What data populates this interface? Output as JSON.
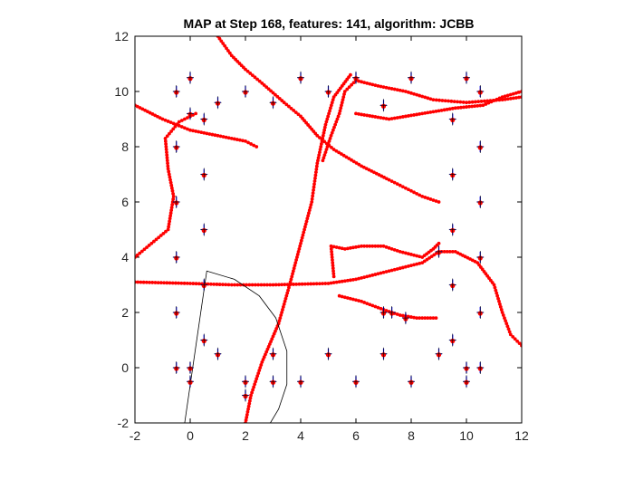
{
  "chart_data": {
    "type": "scatter",
    "title": "MAP at Step 168, features: 141, algorithm: JCBB",
    "xlim": [
      -2,
      12
    ],
    "ylim": [
      -2,
      12
    ],
    "x_ticks": [
      -2,
      0,
      2,
      4,
      6,
      8,
      10,
      12
    ],
    "y_ticks": [
      -2,
      0,
      2,
      4,
      6,
      8,
      10,
      12
    ],
    "grid": false,
    "legend": "none",
    "colors": {
      "landmarks": "#0000ff",
      "estimates": "#ff0000",
      "markers": "#000000",
      "sensor_range": "#000000"
    },
    "landmarks": [
      [
        -0.5,
        10
      ],
      [
        0,
        10.5
      ],
      [
        -0.5,
        8
      ],
      [
        0,
        9.2
      ],
      [
        0.5,
        9
      ],
      [
        1,
        9.6
      ],
      [
        -0.5,
        6
      ],
      [
        0.5,
        7
      ],
      [
        0.5,
        5
      ],
      [
        -0.5,
        4
      ],
      [
        0.5,
        3
      ],
      [
        -0.5,
        2
      ],
      [
        0.5,
        1
      ],
      [
        1,
        0.5
      ],
      [
        -0.5,
        0
      ],
      [
        0,
        0
      ],
      [
        0,
        -0.5
      ],
      [
        2,
        -0.5
      ],
      [
        2,
        -1
      ],
      [
        3,
        0.5
      ],
      [
        3,
        -0.5
      ],
      [
        4,
        -0.5
      ],
      [
        5,
        0.5
      ],
      [
        6,
        -0.5
      ],
      [
        7,
        0.5
      ],
      [
        8,
        -0.5
      ],
      [
        9,
        0.5
      ],
      [
        9.5,
        1
      ],
      [
        10,
        0
      ],
      [
        10,
        -0.5
      ],
      [
        10.5,
        0
      ],
      [
        2,
        10
      ],
      [
        3,
        9.6
      ],
      [
        4,
        10.5
      ],
      [
        5,
        10
      ],
      [
        6,
        10.5
      ],
      [
        7,
        9.5
      ],
      [
        8,
        10.5
      ],
      [
        9.5,
        9
      ],
      [
        10,
        10.5
      ],
      [
        10.5,
        10
      ],
      [
        10.5,
        8
      ],
      [
        9.5,
        7
      ],
      [
        10.5,
        6
      ],
      [
        9.5,
        5
      ],
      [
        10.5,
        4
      ],
      [
        9.5,
        3
      ],
      [
        10.5,
        2
      ],
      [
        7,
        2
      ],
      [
        7.3,
        2
      ],
      [
        7.8,
        1.8
      ],
      [
        9,
        4.2
      ]
    ],
    "estimated_trajectories": [
      {
        "points": [
          [
            1,
            12
          ],
          [
            1.5,
            11.3
          ],
          [
            2,
            10.8
          ],
          [
            2.6,
            10.3
          ],
          [
            3.4,
            9.6
          ],
          [
            4,
            9.1
          ],
          [
            4.6,
            8.4
          ],
          [
            5.2,
            7.9
          ],
          [
            6.2,
            7.3
          ],
          [
            7.2,
            6.8
          ],
          [
            7.8,
            6.5
          ],
          [
            8.4,
            6.2
          ],
          [
            9,
            6
          ]
        ]
      },
      {
        "points": [
          [
            4.8,
            7.5
          ],
          [
            5.1,
            8.4
          ],
          [
            5.4,
            9.2
          ],
          [
            5.6,
            10
          ],
          [
            6,
            10.4
          ],
          [
            6.8,
            10.2
          ],
          [
            7.8,
            10
          ],
          [
            8.8,
            9.7
          ],
          [
            10,
            9.6
          ],
          [
            11.3,
            9.7
          ],
          [
            12,
            9.8
          ]
        ]
      },
      {
        "points": [
          [
            6,
            9.2
          ],
          [
            7.2,
            9
          ],
          [
            8.4,
            9.2
          ],
          [
            9.6,
            9.4
          ],
          [
            10.6,
            9.5
          ],
          [
            11.3,
            9.8
          ],
          [
            12,
            10
          ]
        ]
      },
      {
        "points": [
          [
            -2,
            9.5
          ],
          [
            -1,
            9
          ],
          [
            0,
            8.6
          ],
          [
            1,
            8.4
          ],
          [
            2,
            8.2
          ],
          [
            2.4,
            8
          ]
        ]
      },
      {
        "points": [
          [
            0.2,
            9.2
          ],
          [
            -0.4,
            8.9
          ],
          [
            -0.9,
            8.3
          ],
          [
            -0.8,
            7.2
          ],
          [
            -0.6,
            6.2
          ],
          [
            -0.8,
            5
          ],
          [
            -1.4,
            4.5
          ],
          [
            -2,
            4
          ]
        ]
      },
      {
        "points": [
          [
            2,
            -2
          ],
          [
            2.2,
            -1
          ],
          [
            2.6,
            0.2
          ],
          [
            3.2,
            1.6
          ],
          [
            3.6,
            3
          ],
          [
            4,
            4.5
          ],
          [
            4.4,
            6
          ],
          [
            4.6,
            7.4
          ],
          [
            4.9,
            8.8
          ],
          [
            5.2,
            9.8
          ],
          [
            5.8,
            10.6
          ]
        ]
      },
      {
        "points": [
          [
            -2,
            3.1
          ],
          [
            0,
            3.05
          ],
          [
            1.5,
            3
          ],
          [
            3,
            3
          ],
          [
            5,
            3.05
          ],
          [
            6,
            3.2
          ],
          [
            6.8,
            3.4
          ],
          [
            7.6,
            3.6
          ],
          [
            8.4,
            3.8
          ],
          [
            9,
            4.2
          ],
          [
            9.6,
            4.2
          ],
          [
            10.4,
            3.8
          ],
          [
            11,
            3
          ],
          [
            11.3,
            2
          ],
          [
            11.6,
            1.2
          ],
          [
            12,
            0.8
          ]
        ]
      },
      {
        "points": [
          [
            5.2,
            3.3
          ],
          [
            5.1,
            4.4
          ],
          [
            5.6,
            4.3
          ],
          [
            6.2,
            4.4
          ],
          [
            7,
            4.4
          ],
          [
            7.6,
            4.2
          ],
          [
            8.4,
            4
          ],
          [
            8.8,
            4.3
          ],
          [
            9,
            4.5
          ]
        ]
      },
      {
        "points": [
          [
            5.4,
            2.6
          ],
          [
            6.2,
            2.4
          ],
          [
            7,
            2.1
          ],
          [
            7.6,
            1.9
          ],
          [
            8.2,
            1.8
          ],
          [
            8.9,
            1.8
          ]
        ]
      }
    ],
    "sensor_range": {
      "robot": [
        0.6,
        3.5
      ],
      "arc_points": [
        [
          -0.2,
          -2
        ],
        [
          0.6,
          3.5
        ],
        [
          1.6,
          3.2
        ],
        [
          2.5,
          2.6
        ],
        [
          3.1,
          1.8
        ],
        [
          3.5,
          0.6
        ],
        [
          3.5,
          -0.6
        ],
        [
          3.2,
          -1.5
        ],
        [
          2.9,
          -2
        ]
      ]
    }
  }
}
